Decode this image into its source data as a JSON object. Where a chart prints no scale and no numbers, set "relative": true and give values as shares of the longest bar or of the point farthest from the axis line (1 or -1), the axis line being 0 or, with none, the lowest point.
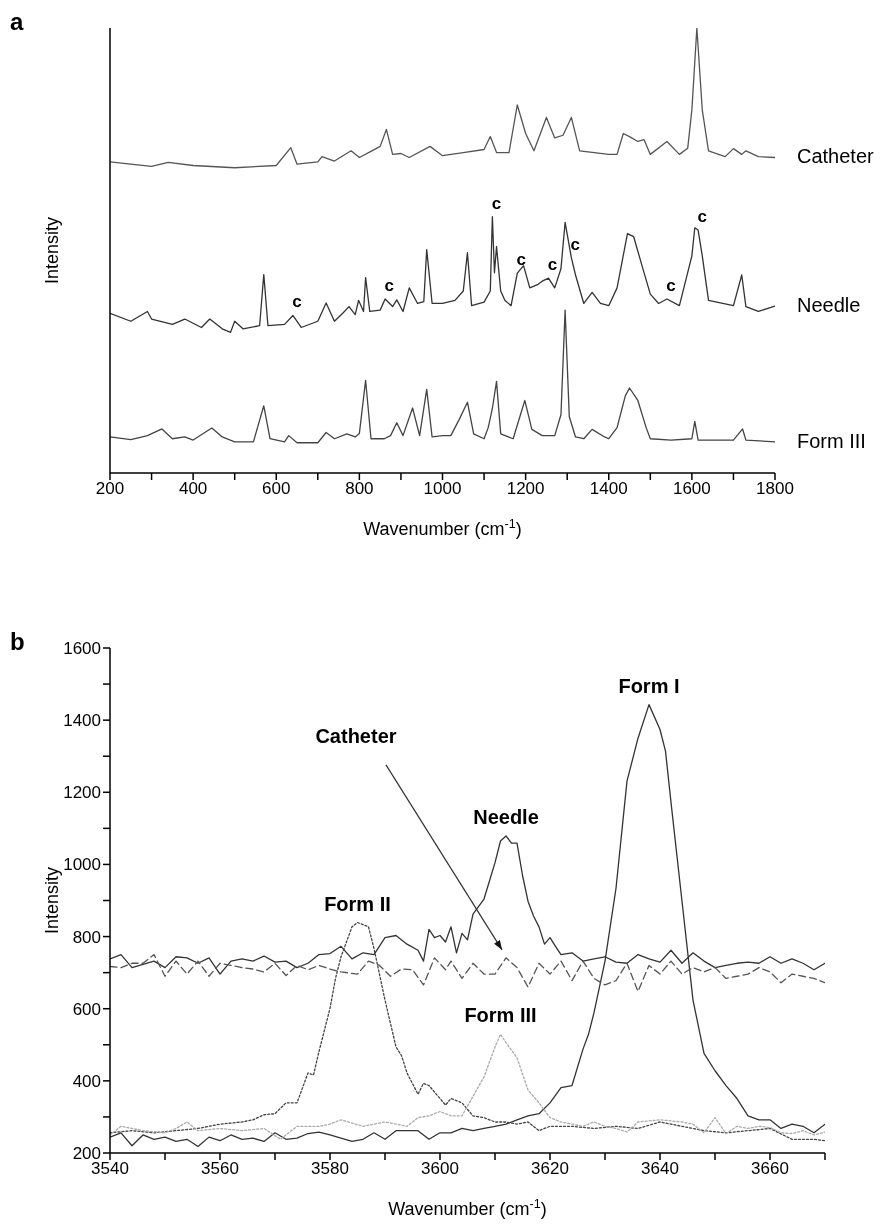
{
  "chart_data": [
    {
      "type": "line",
      "title": "a",
      "relative": true,
      "tick_labels": "x",
      "xlabel": "Wavenumber (cm$^{-1}$)",
      "ylabel": "Intensity",
      "xlim": [
        200,
        1800
      ],
      "xticks": [
        200,
        {
          "value": 300,
          "label": null
        },
        400,
        {
          "value": 500,
          "label": null
        },
        600,
        {
          "value": 700,
          "label": null
        },
        800,
        {
          "value": 900,
          "label": null
        },
        1000,
        {
          "value": 1100,
          "label": null
        },
        1200,
        {
          "value": 1300,
          "label": null
        },
        1400,
        {
          "value": 1500,
          "label": null
        },
        1600,
        {
          "value": 1700,
          "label": null
        },
        1800
      ],
      "series": [
        {
          "name": "Catheter",
          "color": "#555555",
          "x": [
            200,
            300,
            340,
            400,
            500,
            600,
            635,
            650,
            700,
            710,
            740,
            780,
            800,
            830,
            850,
            865,
            880,
            900,
            920,
            970,
            1000,
            1050,
            1100,
            1115,
            1130,
            1160,
            1180,
            1200,
            1220,
            1250,
            1270,
            1290,
            1310,
            1330,
            1400,
            1420,
            1435,
            1450,
            1470,
            1485,
            1500,
            1540,
            1570,
            1590,
            1600,
            1612,
            1625,
            1640,
            1680,
            1700,
            1720,
            1730,
            1760,
            1800
          ],
          "values": [
            0.699,
            0.689,
            0.698,
            0.691,
            0.686,
            0.691,
            0.731,
            0.694,
            0.699,
            0.711,
            0.701,
            0.724,
            0.709,
            0.724,
            0.734,
            0.772,
            0.716,
            0.718,
            0.709,
            0.734,
            0.713,
            0.72,
            0.727,
            0.756,
            0.72,
            0.72,
            0.827,
            0.763,
            0.724,
            0.799,
            0.753,
            0.759,
            0.799,
            0.724,
            0.716,
            0.716,
            0.763,
            0.756,
            0.745,
            0.749,
            0.716,
            0.745,
            0.716,
            0.73,
            0.816,
            1.0,
            0.816,
            0.724,
            0.711,
            0.729,
            0.716,
            0.724,
            0.711,
            0.709
          ]
        },
        {
          "name": "Needle",
          "color": "#333333",
          "x": [
            200,
            250,
            290,
            300,
            350,
            380,
            420,
            440,
            470,
            490,
            500,
            520,
            560,
            570,
            580,
            620,
            640,
            660,
            700,
            720,
            740,
            760,
            775,
            790,
            798,
            810,
            815,
            825,
            850,
            862,
            880,
            890,
            905,
            920,
            940,
            955,
            962,
            975,
            1000,
            1030,
            1050,
            1060,
            1070,
            1100,
            1115,
            1120,
            1125,
            1130,
            1140,
            1150,
            1165,
            1180,
            1195,
            1210,
            1230,
            1240,
            1255,
            1270,
            1285,
            1295,
            1310,
            1320,
            1340,
            1360,
            1380,
            1400,
            1420,
            1445,
            1460,
            1480,
            1500,
            1520,
            1540,
            1570,
            1600,
            1607,
            1615,
            1625,
            1640,
            1700,
            1720,
            1730,
            1760,
            1800
          ],
          "values": [
            0.359,
            0.341,
            0.363,
            0.346,
            0.334,
            0.346,
            0.327,
            0.346,
            0.324,
            0.316,
            0.341,
            0.324,
            0.331,
            0.446,
            0.331,
            0.334,
            0.354,
            0.327,
            0.341,
            0.382,
            0.341,
            0.359,
            0.374,
            0.356,
            0.388,
            0.363,
            0.439,
            0.363,
            0.366,
            0.391,
            0.374,
            0.389,
            0.363,
            0.416,
            0.381,
            0.385,
            0.502,
            0.381,
            0.381,
            0.388,
            0.409,
            0.495,
            0.376,
            0.384,
            0.409,
            0.576,
            0.45,
            0.509,
            0.409,
            0.388,
            0.376,
            0.449,
            0.466,
            0.416,
            0.424,
            0.431,
            0.438,
            0.416,
            0.459,
            0.563,
            0.484,
            0.445,
            0.381,
            0.406,
            0.381,
            0.376,
            0.416,
            0.538,
            0.531,
            0.466,
            0.402,
            0.381,
            0.391,
            0.376,
            0.488,
            0.551,
            0.546,
            0.488,
            0.388,
            0.376,
            0.445,
            0.374,
            0.363,
            0.375
          ]
        },
        {
          "name": "Form III",
          "color": "#444444",
          "x": [
            200,
            250,
            290,
            325,
            350,
            380,
            400,
            445,
            470,
            500,
            545,
            570,
            585,
            620,
            630,
            650,
            700,
            720,
            740,
            770,
            790,
            800,
            815,
            828,
            860,
            875,
            890,
            905,
            928,
            945,
            962,
            975,
            1000,
            1020,
            1040,
            1060,
            1075,
            1100,
            1110,
            1120,
            1130,
            1140,
            1170,
            1198,
            1215,
            1240,
            1270,
            1285,
            1295,
            1305,
            1320,
            1340,
            1360,
            1390,
            1400,
            1420,
            1440,
            1450,
            1470,
            1490,
            1500,
            1550,
            1600,
            1607,
            1615,
            1700,
            1722,
            1730,
            1800
          ],
          "values": [
            0.081,
            0.075,
            0.084,
            0.099,
            0.077,
            0.081,
            0.074,
            0.101,
            0.081,
            0.07,
            0.07,
            0.151,
            0.077,
            0.07,
            0.084,
            0.068,
            0.068,
            0.091,
            0.077,
            0.088,
            0.081,
            0.089,
            0.208,
            0.077,
            0.077,
            0.084,
            0.113,
            0.084,
            0.146,
            0.084,
            0.188,
            0.081,
            0.084,
            0.084,
            0.12,
            0.159,
            0.088,
            0.077,
            0.102,
            0.145,
            0.206,
            0.088,
            0.077,
            0.163,
            0.098,
            0.084,
            0.084,
            0.131,
            0.366,
            0.127,
            0.081,
            0.077,
            0.098,
            0.081,
            0.077,
            0.102,
            0.174,
            0.191,
            0.163,
            0.102,
            0.077,
            0.074,
            0.077,
            0.116,
            0.074,
            0.074,
            0.099,
            0.074,
            0.07
          ]
        }
      ],
      "annotations": [
        {
          "text": "c",
          "x": 640,
          "y": 0.354
        },
        {
          "text": "c",
          "x": 862,
          "y": 0.391
        },
        {
          "text": "c",
          "x": 1120,
          "y": 0.576
        },
        {
          "text": "c",
          "x": 1180,
          "y": 0.449
        },
        {
          "text": "c",
          "x": 1255,
          "y": 0.438
        },
        {
          "text": "c",
          "x": 1310,
          "y": 0.484
        },
        {
          "text": "c",
          "x": 1540,
          "y": 0.391
        },
        {
          "text": "c",
          "x": 1615,
          "y": 0.546
        }
      ]
    },
    {
      "type": "line",
      "title": "b",
      "xlabel": "Wavenumber (cm$^{-1}$)",
      "ylabel": "Intensity",
      "xlim": [
        3540,
        3670
      ],
      "ylim": [
        200,
        1600
      ],
      "xticks": [
        3540,
        {
          "value": 3550,
          "label": null
        },
        3560,
        {
          "value": 3570,
          "label": null
        },
        3580,
        {
          "value": 3590,
          "label": null
        },
        3600,
        {
          "value": 3610,
          "label": null
        },
        3620,
        {
          "value": 3630,
          "label": null
        },
        3640,
        {
          "value": 3650,
          "label": null
        },
        3660,
        {
          "value": 3670,
          "label": null
        }
      ],
      "yticks": [
        200,
        {
          "value": 300,
          "label": null
        },
        400,
        {
          "value": 500,
          "label": null
        },
        600,
        {
          "value": 700,
          "label": null
        },
        800,
        {
          "value": 900,
          "label": null
        },
        1000,
        {
          "value": 1100,
          "label": null
        },
        1200,
        {
          "value": 1300,
          "label": null
        },
        1400,
        {
          "value": 1500,
          "label": null
        },
        1600
      ],
      "series": [
        {
          "name": "Form I",
          "color": "#333333",
          "line_style": "solid",
          "x": [
            3540,
            3542,
            3544,
            3546,
            3548,
            3550,
            3552,
            3554,
            3556,
            3558,
            3560,
            3562,
            3564,
            3566,
            3568,
            3570,
            3572,
            3574,
            3576,
            3578,
            3580,
            3582,
            3584,
            3586,
            3588,
            3590,
            3592,
            3594,
            3596,
            3598,
            3600,
            3602,
            3604,
            3606,
            3608,
            3610,
            3612,
            3614,
            3616,
            3618,
            3620,
            3622,
            3624,
            3626,
            3627,
            3628,
            3630,
            3632,
            3634,
            3636,
            3638,
            3640,
            3641,
            3642,
            3644,
            3646,
            3648,
            3650,
            3652,
            3654,
            3656,
            3658,
            3660,
            3662,
            3664,
            3666,
            3668,
            3670
          ],
          "values": [
            244,
            256,
            220,
            250,
            238,
            244,
            232,
            238,
            218,
            244,
            234,
            250,
            238,
            241,
            232,
            256,
            238,
            241,
            254,
            258,
            250,
            241,
            232,
            238,
            256,
            238,
            262,
            262,
            262,
            238,
            256,
            256,
            268,
            262,
            268,
            274,
            280,
            292,
            303,
            309,
            339,
            381,
            387,
            488,
            529,
            589,
            732,
            934,
            1231,
            1350,
            1443,
            1374,
            1314,
            1172,
            898,
            624,
            476,
            428,
            387,
            351,
            303,
            292,
            292,
            268,
            280,
            274,
            256,
            280
          ]
        },
        {
          "name": "Needle",
          "color": "#333333",
          "line_style": "solid",
          "x": [
            3540,
            3542,
            3544,
            3548,
            3550,
            3552,
            3554,
            3556,
            3558,
            3560,
            3562,
            3564,
            3566,
            3568,
            3570,
            3572,
            3574,
            3576,
            3578,
            3580,
            3582,
            3584,
            3586,
            3588,
            3590,
            3592,
            3594,
            3596,
            3597,
            3598,
            3599,
            3600,
            3601,
            3602,
            3603,
            3604,
            3605,
            3606,
            3608,
            3610,
            3611,
            3612,
            3613,
            3614,
            3615,
            3616,
            3617,
            3618,
            3619,
            3620,
            3621,
            3622,
            3624,
            3626,
            3628,
            3630,
            3632,
            3634,
            3636,
            3638,
            3640,
            3642,
            3644,
            3646,
            3648,
            3650,
            3652,
            3654,
            3656,
            3658,
            3660,
            3662,
            3664,
            3666,
            3668,
            3670
          ],
          "values": [
            738,
            750,
            714,
            732,
            714,
            744,
            741,
            726,
            741,
            696,
            732,
            738,
            732,
            746,
            729,
            732,
            714,
            726,
            750,
            753,
            773,
            738,
            755,
            750,
            797,
            803,
            779,
            762,
            732,
            820,
            797,
            803,
            785,
            827,
            755,
            809,
            791,
            862,
            904,
            1005,
            1065,
            1079,
            1059,
            1059,
            970,
            898,
            857,
            827,
            779,
            797,
            773,
            750,
            755,
            732,
            738,
            744,
            729,
            726,
            750,
            738,
            729,
            762,
            726,
            755,
            732,
            714,
            720,
            726,
            729,
            726,
            744,
            726,
            738,
            726,
            708,
            726
          ]
        },
        {
          "name": "Form II",
          "color": "#444444",
          "line_style": "dotted",
          "x": [
            3540,
            3544,
            3548,
            3552,
            3556,
            3560,
            3564,
            3566,
            3568,
            3570,
            3572,
            3574,
            3576,
            3577,
            3578,
            3579,
            3580,
            3581,
            3582,
            3584,
            3585,
            3586,
            3587,
            3588,
            3590,
            3592,
            3593,
            3594,
            3596,
            3597,
            3598,
            3600,
            3601,
            3602,
            3604,
            3606,
            3608,
            3610,
            3612,
            3614,
            3616,
            3618,
            3620,
            3624,
            3628,
            3632,
            3636,
            3640,
            3644,
            3648,
            3652,
            3656,
            3660,
            3664,
            3668,
            3670
          ],
          "values": [
            256,
            262,
            256,
            262,
            268,
            280,
            286,
            292,
            306,
            309,
            339,
            339,
            422,
            416,
            482,
            541,
            601,
            684,
            744,
            827,
            839,
            833,
            827,
            767,
            624,
            494,
            470,
            422,
            363,
            393,
            387,
            351,
            333,
            351,
            339,
            303,
            298,
            286,
            286,
            280,
            286,
            262,
            274,
            274,
            268,
            274,
            268,
            286,
            274,
            262,
            256,
            262,
            268,
            238,
            238,
            234
          ]
        },
        {
          "name": "Form III",
          "color": "#aaaaaa",
          "line_style": "dotted",
          "x": [
            3540,
            3542,
            3546,
            3550,
            3552,
            3554,
            3556,
            3560,
            3564,
            3568,
            3571,
            3574,
            3578,
            3580,
            3582,
            3586,
            3590,
            3594,
            3596,
            3598,
            3600,
            3602,
            3604,
            3606,
            3608,
            3610,
            3611,
            3612,
            3614,
            3616,
            3618,
            3620,
            3622,
            3624,
            3626,
            3628,
            3630,
            3632,
            3634,
            3636,
            3640,
            3644,
            3646,
            3648,
            3650,
            3652,
            3654,
            3656,
            3658,
            3660,
            3662,
            3664,
            3666,
            3668,
            3670
          ],
          "values": [
            250,
            274,
            262,
            256,
            268,
            286,
            262,
            268,
            262,
            268,
            238,
            274,
            274,
            280,
            292,
            274,
            286,
            274,
            298,
            303,
            315,
            303,
            303,
            357,
            411,
            494,
            529,
            506,
            464,
            375,
            339,
            298,
            286,
            280,
            274,
            286,
            274,
            268,
            258,
            286,
            292,
            286,
            280,
            256,
            298,
            254,
            274,
            268,
            274,
            271,
            256,
            254,
            262,
            250,
            258
          ]
        },
        {
          "name": "Catheter",
          "color": "#555555",
          "line_style": "dashed",
          "x": [
            3540,
            3542,
            3544,
            3546,
            3548,
            3550,
            3552,
            3554,
            3556,
            3558,
            3560,
            3562,
            3564,
            3566,
            3568,
            3570,
            3572,
            3574,
            3576,
            3578,
            3580,
            3582,
            3585,
            3587,
            3589,
            3591,
            3593,
            3595,
            3597,
            3599,
            3601,
            3602,
            3604,
            3606,
            3608,
            3610,
            3612,
            3614,
            3616,
            3618,
            3620,
            3622,
            3624,
            3626,
            3628,
            3630,
            3632,
            3634,
            3636,
            3638,
            3640,
            3642,
            3644,
            3646,
            3648,
            3650,
            3652,
            3654,
            3656,
            3658,
            3660,
            3662,
            3664,
            3666,
            3668,
            3670
          ],
          "values": [
            717,
            714,
            726,
            726,
            750,
            690,
            732,
            696,
            732,
            690,
            726,
            720,
            714,
            710,
            702,
            726,
            692,
            720,
            708,
            720,
            710,
            702,
            696,
            732,
            720,
            690,
            710,
            708,
            666,
            741,
            708,
            732,
            684,
            726,
            696,
            696,
            741,
            714,
            660,
            726,
            696,
            732,
            678,
            732,
            684,
            666,
            678,
            726,
            648,
            720,
            696,
            732,
            696,
            714,
            702,
            714,
            684,
            690,
            696,
            714,
            702,
            672,
            696,
            690,
            684,
            672
          ]
        }
      ]
    }
  ]
}
